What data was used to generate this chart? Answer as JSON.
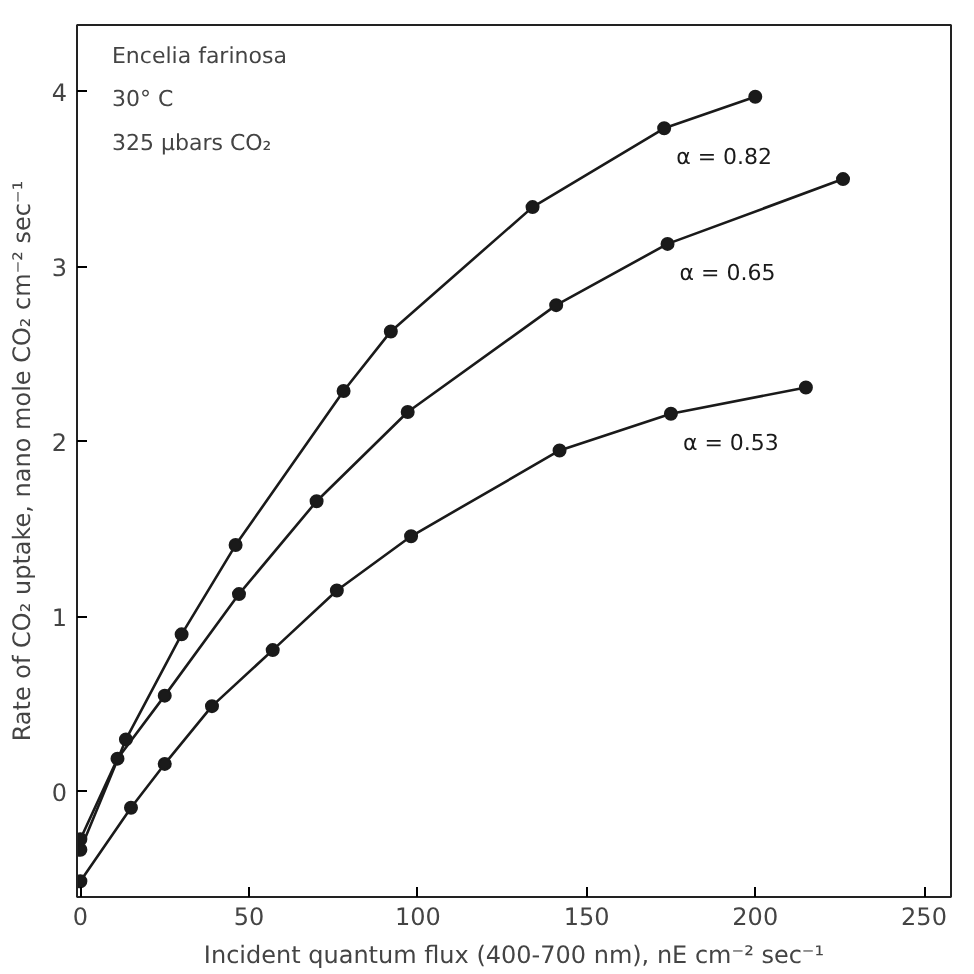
{
  "chart_data": {
    "type": "line",
    "xlabel": "Incident quantum flux (400-700 nm), nE cm⁻² sec⁻¹",
    "ylabel": "Rate of CO₂ uptake, nano mole CO₂ cm⁻² sec⁻¹",
    "xlim": [
      -1,
      258
    ],
    "ylim": [
      -0.6,
      4.38
    ],
    "xticks": [
      0,
      50,
      100,
      150,
      200,
      250
    ],
    "yticks": [
      0,
      1,
      2,
      3,
      4
    ],
    "grid": false,
    "marker": "circle",
    "line_style": "solid",
    "series": [
      {
        "name": "α = 0.82",
        "color": "#1a1a1a",
        "x": [
          0,
          13.5,
          30,
          46,
          78,
          92,
          134,
          173,
          200
        ],
        "values": [
          -0.33,
          0.3,
          0.9,
          1.41,
          2.29,
          2.63,
          3.34,
          3.79,
          3.97
        ]
      },
      {
        "name": "α = 0.65",
        "color": "#1a1a1a",
        "x": [
          0,
          11,
          25,
          47,
          70,
          97,
          141,
          174,
          226
        ],
        "values": [
          -0.27,
          0.19,
          0.55,
          1.13,
          1.66,
          2.17,
          2.78,
          3.13,
          3.5
        ]
      },
      {
        "name": "α = 0.53",
        "color": "#1a1a1a",
        "x": [
          0,
          15,
          25,
          39,
          57,
          76,
          98,
          142,
          175,
          215
        ],
        "values": [
          -0.51,
          -0.09,
          0.16,
          0.49,
          0.81,
          1.15,
          1.46,
          1.95,
          2.16,
          2.31
        ]
      }
    ],
    "annotations": [
      "Encelia farinosa",
      "30° C",
      "325 μbars CO₂"
    ]
  }
}
